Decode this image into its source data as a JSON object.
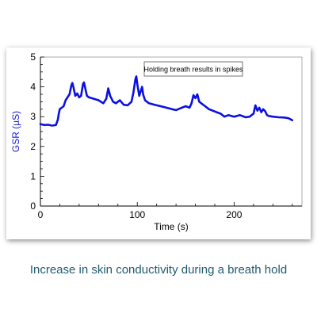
{
  "caption": "Increase in skin conductivity during a breath hold",
  "colors": {
    "series": "#0a10e0",
    "ylabel": "#1a1ae0",
    "caption": "#1f5a6e",
    "axis": "#000000"
  },
  "chart_data": {
    "type": "line",
    "title": "",
    "xlabel": "Time (s)",
    "ylabel": "GSR (µS)",
    "xlim": [
      0,
      270
    ],
    "ylim": [
      0,
      5
    ],
    "xticks": [
      0,
      100,
      200
    ],
    "yticks": [
      0,
      1,
      2,
      3,
      4,
      5
    ],
    "grid": false,
    "annotation": "Holding breath results in spikes",
    "series": [
      {
        "name": "",
        "x": [
          0,
          4,
          8,
          12,
          16,
          18,
          19,
          20,
          22,
          24,
          26,
          28,
          30,
          32,
          33,
          34,
          36,
          38,
          40,
          42,
          44,
          45,
          46,
          48,
          50,
          55,
          60,
          65,
          68,
          70,
          72,
          75,
          78,
          82,
          86,
          90,
          94,
          96,
          98,
          99,
          100,
          102,
          104,
          105,
          106,
          108,
          112,
          118,
          124,
          130,
          136,
          140,
          146,
          150,
          154,
          156,
          158,
          160,
          162,
          164,
          166,
          170,
          174,
          178,
          182,
          186,
          190,
          194,
          200,
          206,
          212,
          216,
          220,
          222,
          224,
          226,
          228,
          230,
          232,
          234,
          236,
          240,
          246,
          252,
          256,
          260
        ],
        "y": [
          2.75,
          2.72,
          2.73,
          2.7,
          2.72,
          2.9,
          3.1,
          3.25,
          3.3,
          3.35,
          3.55,
          3.65,
          3.75,
          4.05,
          4.13,
          4.0,
          3.7,
          3.78,
          3.65,
          3.7,
          4.1,
          4.15,
          4.0,
          3.7,
          3.65,
          3.6,
          3.55,
          3.45,
          3.6,
          3.95,
          3.7,
          3.5,
          3.45,
          3.55,
          3.4,
          3.38,
          3.5,
          3.8,
          4.25,
          4.35,
          4.1,
          3.7,
          3.9,
          4.0,
          3.75,
          3.55,
          3.45,
          3.4,
          3.35,
          3.3,
          3.25,
          3.22,
          3.3,
          3.35,
          3.3,
          3.45,
          3.72,
          3.62,
          3.75,
          3.5,
          3.45,
          3.35,
          3.25,
          3.2,
          3.15,
          3.1,
          3.0,
          3.05,
          3.0,
          3.05,
          2.98,
          3.0,
          3.1,
          3.38,
          3.2,
          3.3,
          3.15,
          3.25,
          3.18,
          3.05,
          3.02,
          3.0,
          2.98,
          2.97,
          2.95,
          2.88
        ]
      }
    ]
  }
}
